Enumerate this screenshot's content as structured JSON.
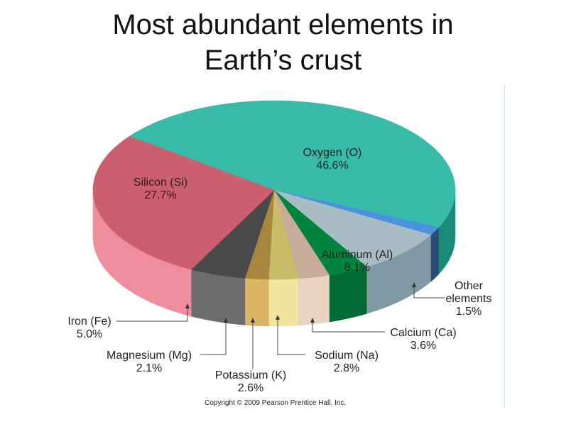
{
  "title_line1": "Most abundant elements in",
  "title_line2": "Earth’s crust",
  "copyright": "Copyright © 2009 Pearson Prentice Hall, Inc.",
  "chart_data": {
    "type": "pie",
    "title": "Most abundant elements in Earth’s crust",
    "slices": [
      {
        "name": "Oxygen (O)",
        "value": 46.6,
        "label": "46.6%",
        "top_color": "#38bba8",
        "side_color": "#1b8a78"
      },
      {
        "name": "Other elements",
        "value": 1.5,
        "label": "1.5%",
        "top_color": "#4a93dc",
        "side_color": "#2a4a78"
      },
      {
        "name": "Aluminum (Al)",
        "value": 8.1,
        "label": "8.1%",
        "top_color": "#a8bcc4",
        "side_color": "#7f9aa4"
      },
      {
        "name": "Calcium (Ca)",
        "value": 3.6,
        "label": "3.6%",
        "top_color": "#00843d",
        "side_color": "#006b32"
      },
      {
        "name": "Sodium (Na)",
        "value": 2.8,
        "label": "2.8%",
        "top_color": "#c7ad99",
        "side_color": "#e8d2c2"
      },
      {
        "name": "Potassium (K)",
        "value": 2.6,
        "label": "2.6%",
        "top_color": "#c9bc68",
        "side_color": "#f2e49c"
      },
      {
        "name": "Magnesium (Mg)",
        "value": 2.1,
        "label": "2.1%",
        "top_color": "#a8863e",
        "side_color": "#d9b564"
      },
      {
        "name": "Iron (Fe)",
        "value": 5.0,
        "label": "5.0%",
        "top_color": "#4a4a4a",
        "side_color": "#6d6d6d"
      },
      {
        "name": "Silicon (Si)",
        "value": 27.7,
        "label": "27.7%",
        "top_color": "#cb5f6e",
        "side_color": "#ef8d9c"
      }
    ]
  }
}
